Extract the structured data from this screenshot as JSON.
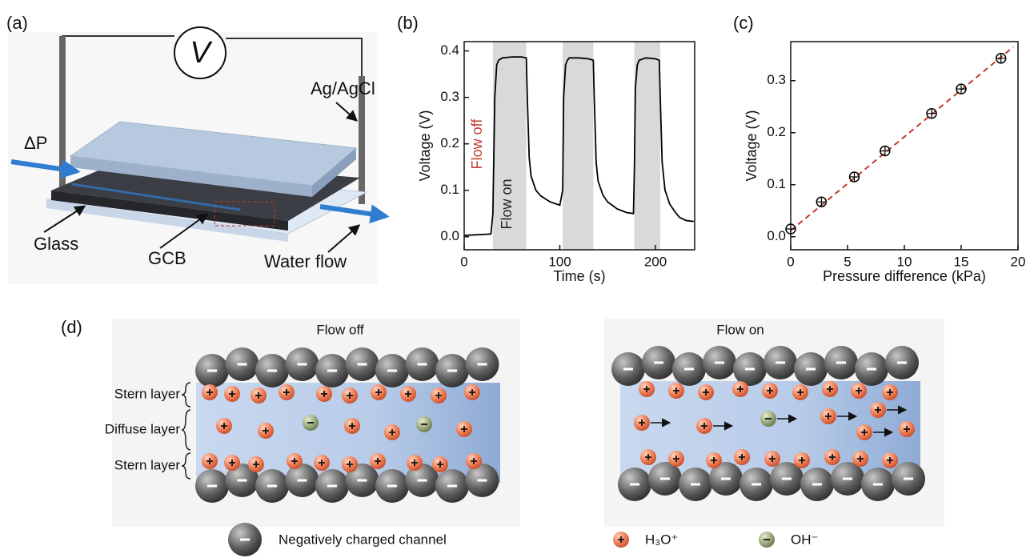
{
  "panels": [
    "(a)",
    "(b)",
    "(c)",
    "(d)"
  ],
  "diagram_a": {
    "voltmeter": "V",
    "electrode": "Ag/AgCl",
    "pressure": "ΔP",
    "glass": "Glass",
    "gcb": "GCB",
    "water_flow": "Water flow"
  },
  "chart_data": [
    {
      "type": "line",
      "xlabel": "Time (s)",
      "ylabel": "Voltage (V)",
      "x": [
        0,
        10,
        20,
        28,
        30,
        32,
        34,
        36,
        40,
        50,
        60,
        65,
        66,
        68,
        70,
        75,
        80,
        90,
        100,
        103,
        104,
        106,
        108,
        110,
        120,
        130,
        135,
        136,
        138,
        140,
        145,
        150,
        160,
        170,
        177,
        178,
        179,
        181,
        183,
        190,
        200,
        204,
        205,
        207,
        210,
        215,
        220,
        225,
        232,
        240
      ],
      "series": [
        {
          "color": "#000000",
          "values": [
            0.003,
            0.004,
            0.005,
            0.006,
            0.05,
            0.3,
            0.37,
            0.38,
            0.385,
            0.387,
            0.387,
            0.385,
            0.3,
            0.17,
            0.13,
            0.1,
            0.088,
            0.075,
            0.068,
            0.1,
            0.3,
            0.37,
            0.38,
            0.385,
            0.385,
            0.383,
            0.38,
            0.3,
            0.16,
            0.12,
            0.09,
            0.075,
            0.06,
            0.052,
            0.05,
            0.15,
            0.32,
            0.37,
            0.38,
            0.385,
            0.383,
            0.38,
            0.3,
            0.16,
            0.1,
            0.07,
            0.055,
            0.042,
            0.035,
            0.033
          ]
        }
      ],
      "shaded": [
        [
          30,
          65
        ],
        [
          103,
          135
        ],
        [
          178,
          205
        ]
      ],
      "shade_color": "#d9d9d9",
      "annotations": [
        {
          "text": "Flow off",
          "color": "#c0392b"
        },
        {
          "text": "Flow on",
          "color": "#222222"
        }
      ],
      "xlim": [
        0,
        241
      ],
      "xticks": [
        0,
        100,
        200
      ],
      "ylim": [
        -0.028,
        0.42
      ],
      "yticks": [
        {
          "value": 0,
          "label": "0.0"
        },
        0.1,
        0.2,
        0.3,
        0.4
      ]
    },
    {
      "type": "scatter",
      "xlabel": "Pressure difference (kPa)",
      "ylabel": "Voltage (V)",
      "x": [
        0,
        2.7,
        5.6,
        8.3,
        12.4,
        15,
        18.5
      ],
      "series": [
        {
          "color": "#000000",
          "values": [
            0.015,
            0.067,
            0.115,
            0.165,
            0.237,
            0.284,
            0.343
          ]
        }
      ],
      "fit": {
        "color": "#c0392b",
        "x": [
          0,
          19.6
        ],
        "y": [
          0.012,
          0.365
        ]
      },
      "xlim": [
        0,
        20
      ],
      "xticks": [
        0,
        5,
        10,
        15,
        20
      ],
      "ylim": [
        -0.025,
        0.375
      ],
      "yticks": [
        {
          "value": 0,
          "label": "0.0"
        },
        0.1,
        0.2,
        0.3
      ]
    }
  ],
  "diagram_d": {
    "left_title": "Flow off",
    "right_title": "Flow on",
    "layers": [
      "Stern layer",
      "Diffuse layer",
      "Stern layer"
    ],
    "legend": [
      "Negatively charged channel",
      "H₃O⁺",
      "OH⁻"
    ]
  }
}
